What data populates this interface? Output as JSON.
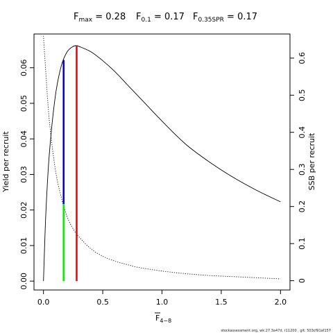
{
  "chart_data": {
    "type": "line",
    "title": {
      "fmax": {
        "label": "F",
        "sub": "max",
        "value": "0.28"
      },
      "f01": {
        "label": "F",
        "sub": "0.1",
        "value": "0.17"
      },
      "fspr": {
        "label": "F",
        "sub": "0.35SPR",
        "value": "0.17"
      }
    },
    "xlabel": {
      "main": "F",
      "sub": "4−8"
    },
    "ylabel": "Yield per recruit",
    "y2label": "SSB per recruit",
    "xlim": [
      -0.08,
      2.08
    ],
    "ylim": [
      -0.0025,
      0.0695
    ],
    "y2lim": [
      -0.025,
      0.665
    ],
    "x_ticks": [
      "0.0",
      "0.5",
      "1.0",
      "1.5",
      "2.0"
    ],
    "y_ticks": [
      "0.00",
      "0.01",
      "0.02",
      "0.03",
      "0.04",
      "0.05",
      "0.06"
    ],
    "y2_ticks": [
      "0",
      "0.1",
      "0.2",
      "0.3",
      "0.4",
      "0.5",
      "0.6"
    ],
    "series": [
      {
        "axis": "left",
        "style": "solid",
        "x": [
          0,
          0.02,
          0.05,
          0.1,
          0.15,
          0.2,
          0.25,
          0.28,
          0.3,
          0.4,
          0.5,
          0.6,
          0.7,
          0.8,
          1.0,
          1.2,
          1.4,
          1.6,
          1.8,
          2.0
        ],
        "y": [
          0.0,
          0.019,
          0.036,
          0.052,
          0.0605,
          0.0645,
          0.066,
          0.0662,
          0.066,
          0.0645,
          0.062,
          0.059,
          0.0555,
          0.052,
          0.045,
          0.0385,
          0.0335,
          0.0292,
          0.0255,
          0.0223
        ]
      },
      {
        "axis": "right",
        "style": "dotted",
        "x": [
          0,
          0.02,
          0.05,
          0.1,
          0.15,
          0.2,
          0.25,
          0.3,
          0.4,
          0.5,
          0.6,
          0.7,
          0.8,
          1.0,
          1.2,
          1.4,
          1.6,
          1.8,
          2.0
        ],
        "y": [
          0.66,
          0.56,
          0.43,
          0.3,
          0.225,
          0.172,
          0.14,
          0.118,
          0.086,
          0.066,
          0.053,
          0.044,
          0.036,
          0.026,
          0.019,
          0.014,
          0.011,
          0.008,
          0.005
        ]
      }
    ],
    "reference_lines": [
      {
        "x": 0.17,
        "y0": 0.0,
        "y1": 0.0217,
        "color": "#00ee00"
      },
      {
        "x": 0.17,
        "y0": 0.0217,
        "y1": 0.0622,
        "color": "#0000cc"
      },
      {
        "x": 0.28,
        "y0": 0.0,
        "y1": 0.0662,
        "color": "#ee0000"
      }
    ],
    "grid": false,
    "footer": "stockassessment.org, wk:27.3a47d, r11200 , git: 503cf91af157"
  }
}
